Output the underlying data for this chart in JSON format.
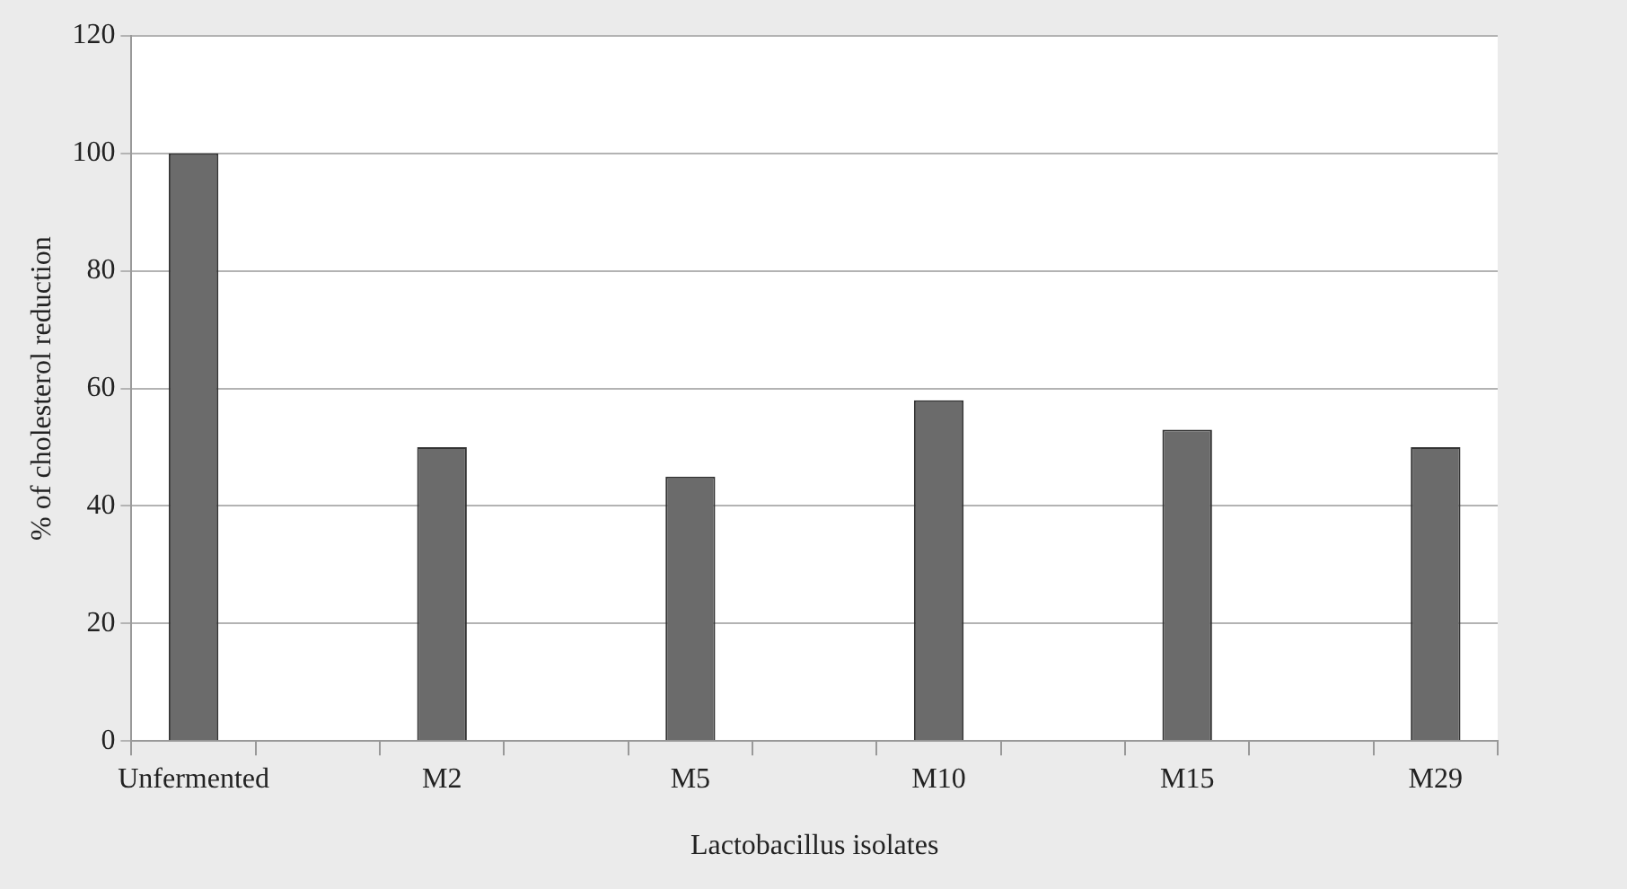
{
  "chart_data": {
    "type": "bar",
    "categories": [
      "Unfermented",
      null,
      "M2",
      null,
      "M5",
      null,
      "M10",
      null,
      "M15",
      null,
      "M29"
    ],
    "values": [
      100,
      null,
      50,
      null,
      45,
      null,
      58,
      null,
      53,
      null,
      50
    ],
    "color": "#6b6b6b",
    "xlabel": "Lactobacillus isolates",
    "ylabel": "% of cholesterol reduction",
    "ylim": [
      0,
      120
    ],
    "yticks": [
      0,
      20,
      40,
      60,
      80,
      100,
      120
    ],
    "grid": "y",
    "legend": false
  }
}
